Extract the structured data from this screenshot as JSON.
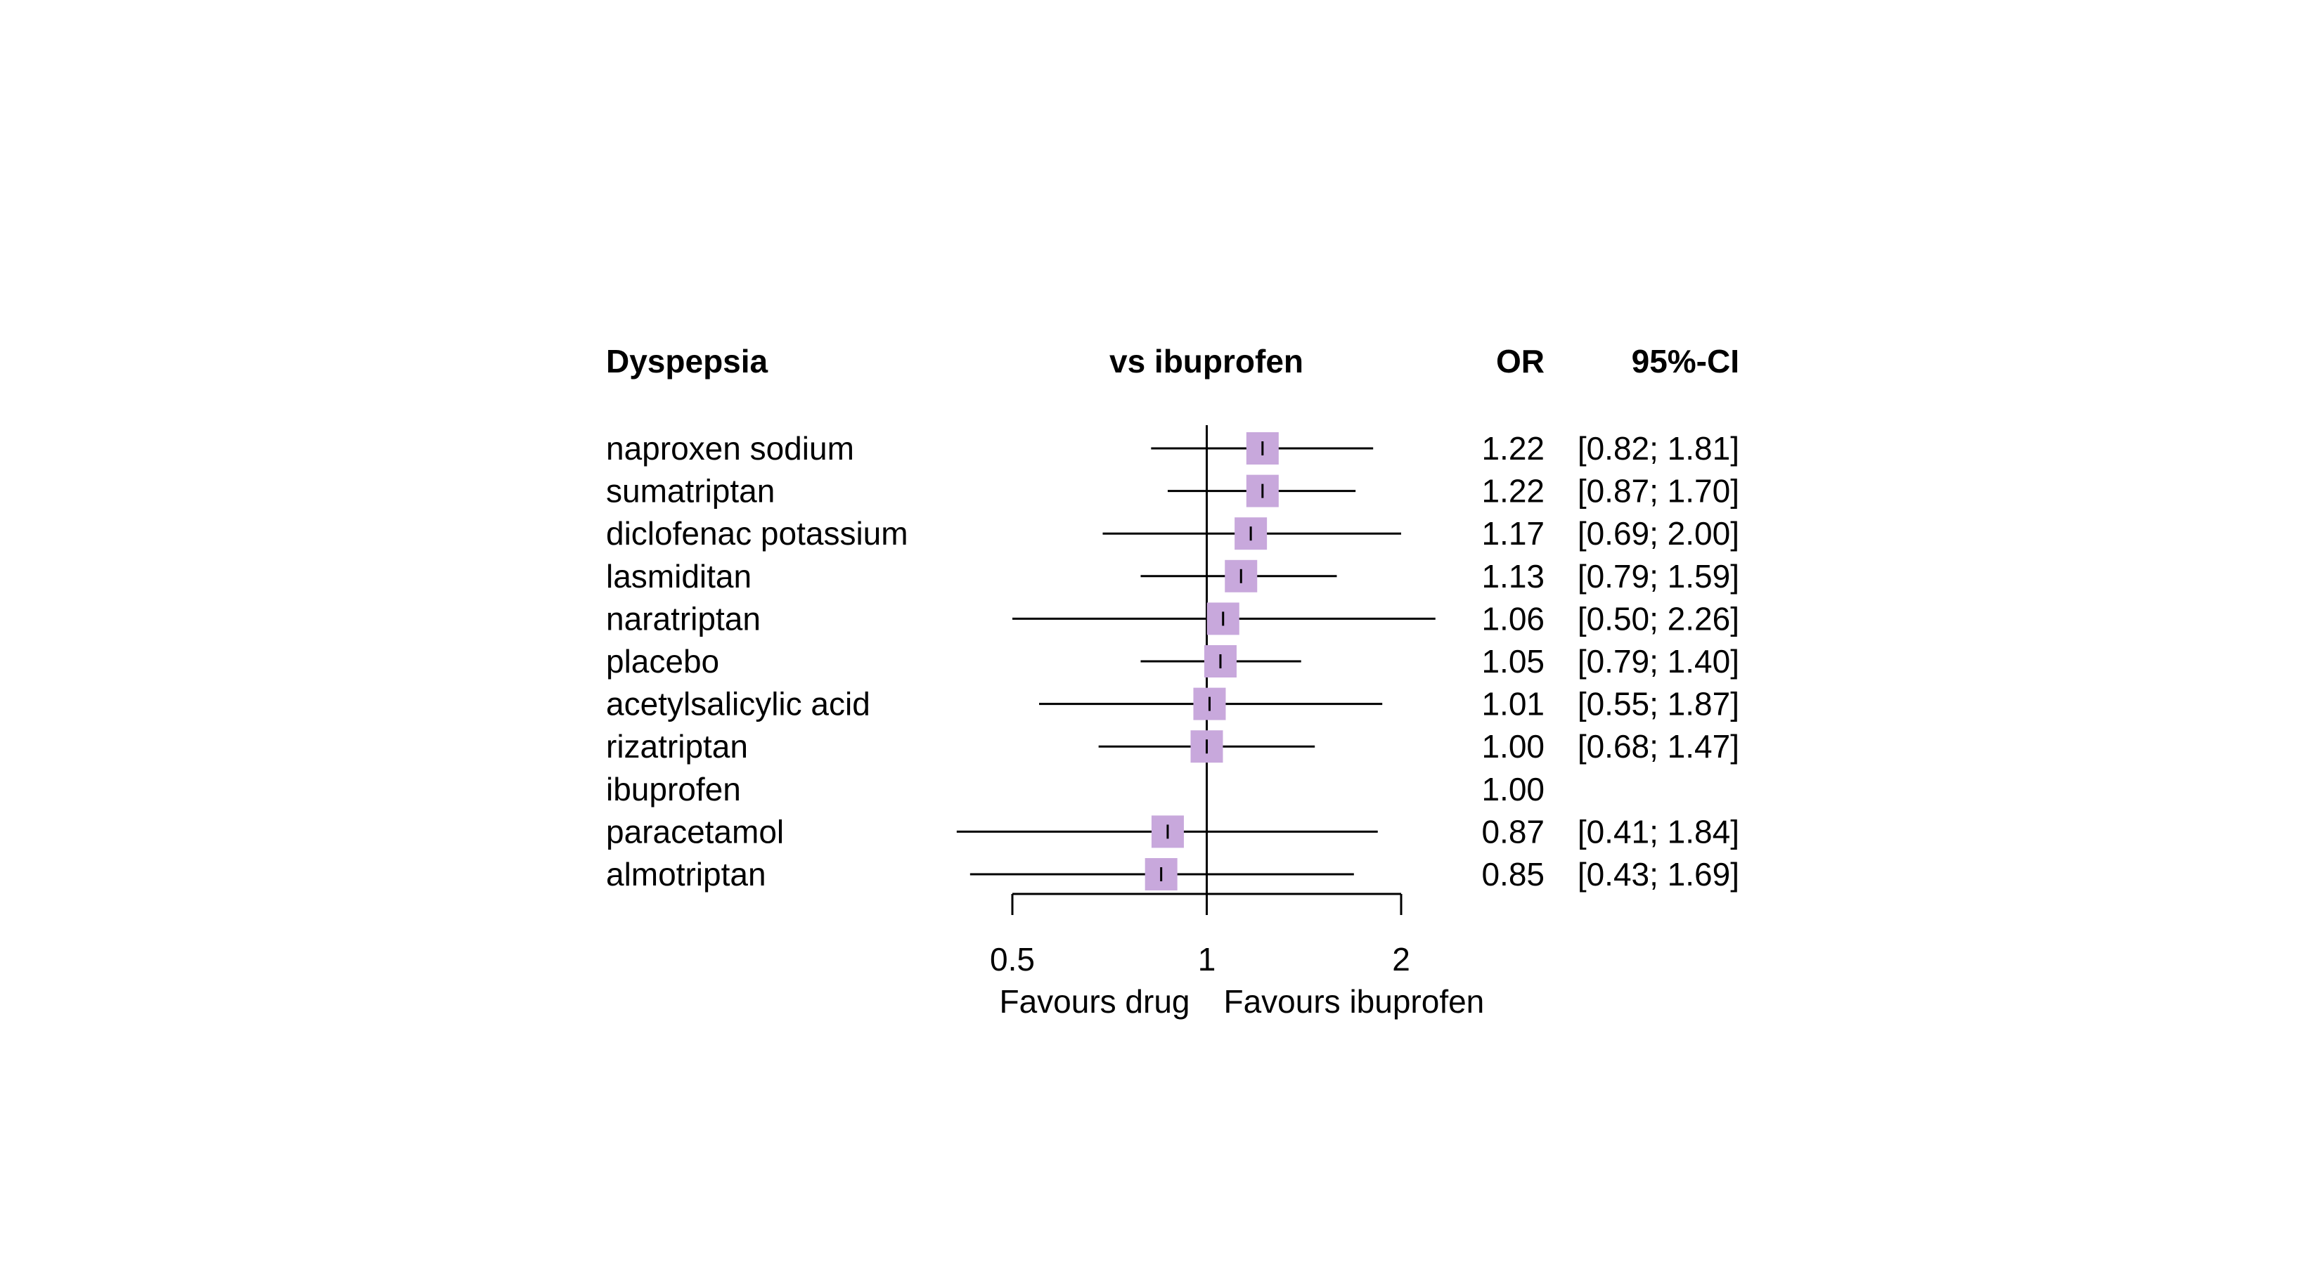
{
  "chart_data": {
    "type": "forest",
    "headers": {
      "label": "Dyspepsia",
      "comparison": "vs ibuprofen",
      "estimate": "OR",
      "ci": "95%-CI"
    },
    "rows": [
      {
        "name": "naproxen sodium",
        "or": 1.22,
        "lower": 0.82,
        "upper": 1.81,
        "or_text": "1.22",
        "ci_text": "[0.82; 1.81]"
      },
      {
        "name": "sumatriptan",
        "or": 1.22,
        "lower": 0.87,
        "upper": 1.7,
        "or_text": "1.22",
        "ci_text": "[0.87; 1.70]"
      },
      {
        "name": "diclofenac potassium",
        "or": 1.17,
        "lower": 0.69,
        "upper": 2.0,
        "or_text": "1.17",
        "ci_text": "[0.69; 2.00]"
      },
      {
        "name": "lasmiditan",
        "or": 1.13,
        "lower": 0.79,
        "upper": 1.59,
        "or_text": "1.13",
        "ci_text": "[0.79; 1.59]"
      },
      {
        "name": "naratriptan",
        "or": 1.06,
        "lower": 0.5,
        "upper": 2.26,
        "or_text": "1.06",
        "ci_text": "[0.50; 2.26]"
      },
      {
        "name": "placebo",
        "or": 1.05,
        "lower": 0.79,
        "upper": 1.4,
        "or_text": "1.05",
        "ci_text": "[0.79; 1.40]"
      },
      {
        "name": "acetylsalicylic acid",
        "or": 1.01,
        "lower": 0.55,
        "upper": 1.87,
        "or_text": "1.01",
        "ci_text": "[0.55; 1.87]"
      },
      {
        "name": "rizatriptan",
        "or": 1.0,
        "lower": 0.68,
        "upper": 1.47,
        "or_text": "1.00",
        "ci_text": "[0.68; 1.47]"
      },
      {
        "name": "ibuprofen",
        "or": 1.0,
        "lower": null,
        "upper": null,
        "or_text": "1.00",
        "ci_text": ""
      },
      {
        "name": "paracetamol",
        "or": 0.87,
        "lower": 0.41,
        "upper": 1.84,
        "or_text": "0.87",
        "ci_text": "[0.41; 1.84]"
      },
      {
        "name": "almotriptan",
        "or": 0.85,
        "lower": 0.43,
        "upper": 1.69,
        "or_text": "0.85",
        "ci_text": "[0.43; 1.69]"
      }
    ],
    "x_scale": "log",
    "xlim": [
      0.5,
      2
    ],
    "x_ticks": [
      {
        "value": 0.5,
        "label": "0.5"
      },
      {
        "value": 1,
        "label": "1"
      },
      {
        "value": 2,
        "label": "2"
      }
    ],
    "reference_line": 1,
    "xlabel_left": "Favours drug",
    "xlabel_right": "Favours ibuprofen",
    "marker_color": "#C8A8DC",
    "line_color": "#000000",
    "grid": false
  }
}
